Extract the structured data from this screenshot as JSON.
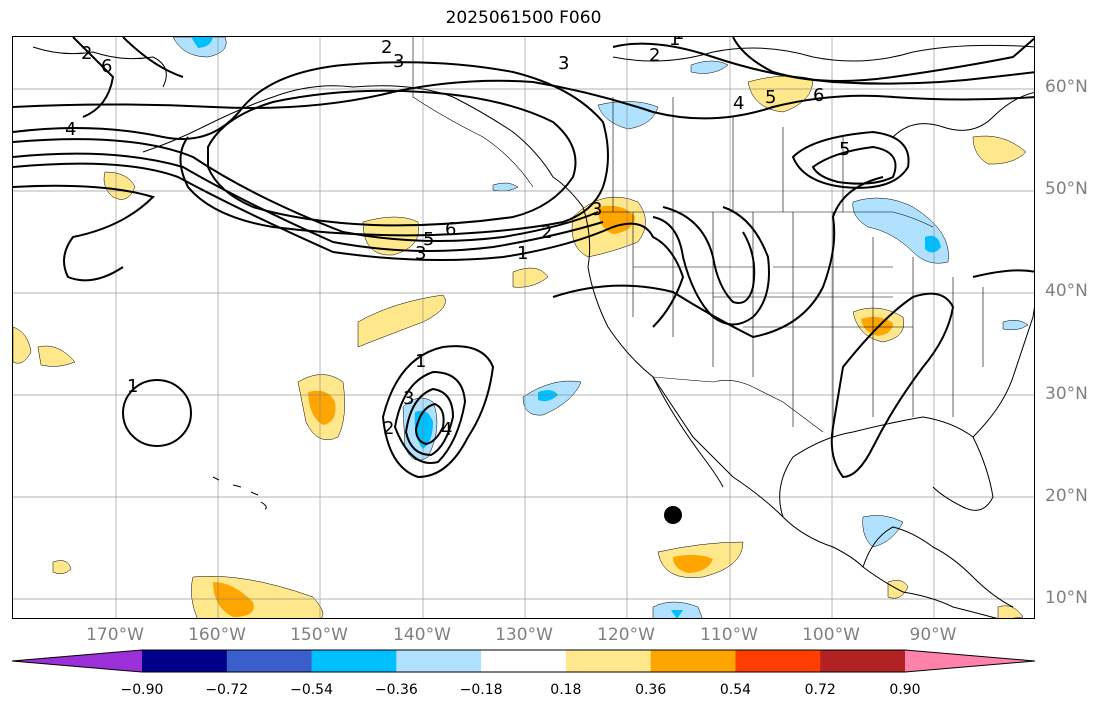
{
  "title": "2025061500 F060",
  "latitude_labels": [
    "60°N",
    "50°N",
    "40°N",
    "30°N",
    "20°N",
    "10°N"
  ],
  "longitude_labels": [
    "170°W",
    "160°W",
    "150°W",
    "140°W",
    "130°W",
    "120°W",
    "110°W",
    "100°W",
    "90°W"
  ],
  "colorbar": {
    "tick_labels": [
      "−0.90",
      "−0.72",
      "−0.54",
      "−0.36",
      "−0.18",
      "0.18",
      "0.36",
      "0.54",
      "0.72",
      "0.90"
    ],
    "colors": [
      "#9b30d9",
      "#00008b",
      "#3a5fcd",
      "#00bfff",
      "#b0e2ff",
      "#ffffff",
      "#ffe88c",
      "#ffa500",
      "#ff3e00",
      "#b22222",
      "#ff82ab"
    ]
  },
  "contour_labels": [
    "2",
    "3",
    "3",
    "2",
    "1",
    "4",
    "5",
    "6",
    "5",
    "6",
    "5",
    "3",
    "2",
    "1",
    "4",
    "1",
    "1",
    "2",
    "3",
    "4",
    "3",
    "1",
    "2",
    "6"
  ]
}
